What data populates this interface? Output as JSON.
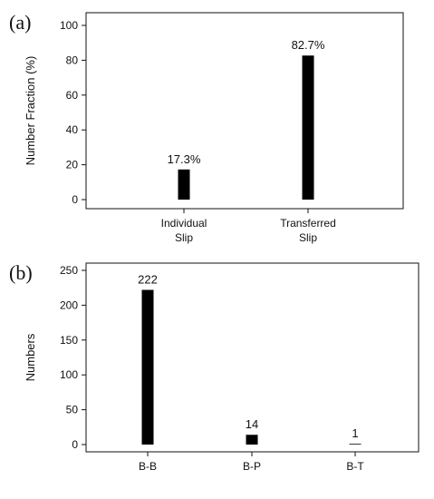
{
  "chart_data": [
    {
      "type": "bar",
      "panel_label": "(a)",
      "categories": [
        [
          "Individual",
          "Slip"
        ],
        [
          "Transferred",
          "Slip"
        ]
      ],
      "values": [
        17.3,
        82.7
      ],
      "data_labels": [
        "17.3%",
        "82.7%"
      ],
      "ylabel": "Number Fraction (%)",
      "ylim": [
        0,
        100
      ],
      "yticks": [
        0,
        20,
        40,
        60,
        80,
        100
      ],
      "bar_color": "#000000",
      "grid": false
    },
    {
      "type": "bar",
      "panel_label": "(b)",
      "categories": [
        [
          "B-B"
        ],
        [
          "B-P"
        ],
        [
          "B-T"
        ]
      ],
      "values": [
        222,
        14,
        1
      ],
      "data_labels": [
        "222",
        "14",
        "1"
      ],
      "ylabel": "Numbers",
      "ylim": [
        0,
        250
      ],
      "yticks": [
        0,
        50,
        100,
        150,
        200,
        250
      ],
      "bar_color": "#000000",
      "grid": false
    }
  ]
}
